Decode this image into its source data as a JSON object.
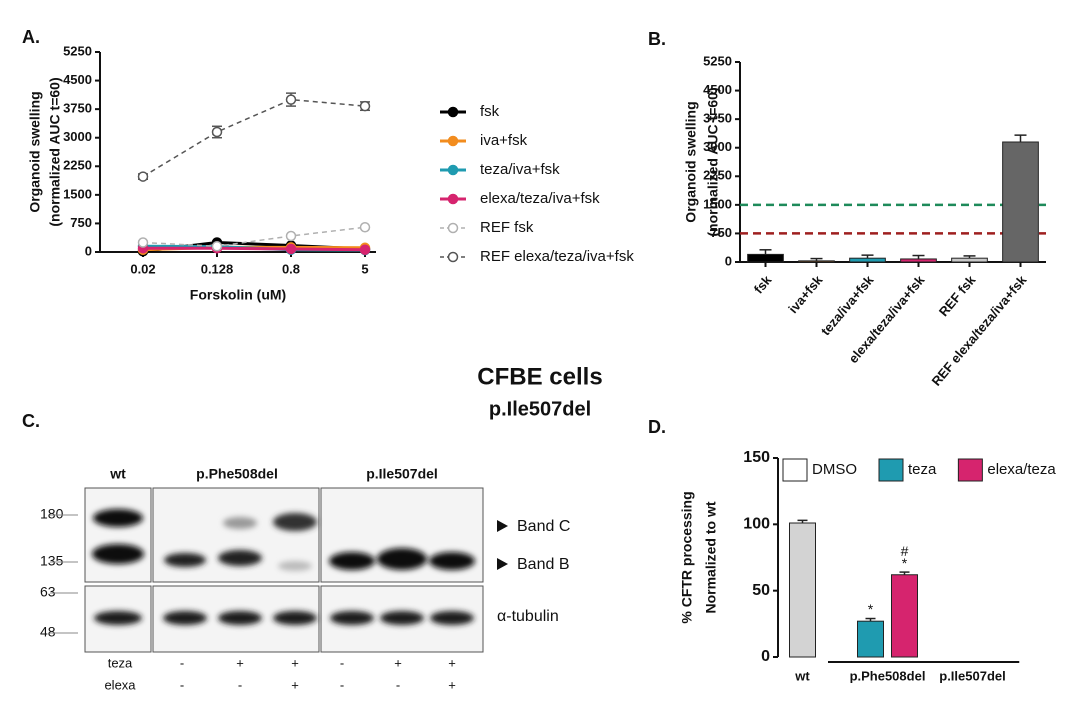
{
  "figure": {
    "title": "CFBE cells",
    "subtitle": "p.Ile507del"
  },
  "blot": {
    "panel": "C.",
    "headers": [
      "wt",
      "p.Phe508del",
      "p.Ile507del"
    ],
    "markers": [
      180,
      135,
      63,
      48
    ],
    "bands": [
      "Band C",
      "Band B",
      "α-tubulin"
    ],
    "treatments": [
      {
        "name": "teza",
        "signs": [
          "-",
          "+",
          "+",
          "-",
          "+",
          "+"
        ]
      },
      {
        "name": "elexa",
        "signs": [
          "-",
          "-",
          "+",
          "-",
          "-",
          "+"
        ]
      }
    ]
  },
  "chart_data": [
    {
      "type": "line",
      "panel": "A.",
      "ylabel": [
        "Organoid swelling",
        "(normalized AUC t=60)"
      ],
      "xlabel": "Forskolin (uM)",
      "categories": [
        "0.02",
        "0.128",
        "0.8",
        "5"
      ],
      "ylim": [
        0,
        5250
      ],
      "yticks": [
        0,
        750,
        1500,
        2250,
        3000,
        3750,
        4500,
        5250
      ],
      "series": [
        {
          "name": "fsk",
          "color": "#000000",
          "values": [
            20,
            250,
            170,
            80
          ]
        },
        {
          "name": "iva+fsk",
          "color": "#f28c1e",
          "values": [
            60,
            120,
            120,
            110
          ]
        },
        {
          "name": "teza/iva+fsk",
          "color": "#1f9bb0",
          "values": [
            150,
            140,
            60,
            50
          ]
        },
        {
          "name": "elexa/teza/iva+fsk",
          "color": "#d6246e",
          "values": [
            100,
            100,
            80,
            60
          ]
        },
        {
          "name": "REF fsk",
          "color": "#b0b0b0",
          "dashed": true,
          "values": [
            250,
            150,
            420,
            650
          ]
        },
        {
          "name": "REF elexa/teza/iva+fsk",
          "color": "#555555",
          "dashed": true,
          "values": [
            1980,
            3150,
            4000,
            3830
          ],
          "errors": [
            70,
            150,
            170,
            110
          ]
        }
      ]
    },
    {
      "type": "bar",
      "panel": "B.",
      "ylabel": [
        "Organoid swelling",
        "(normalized AUC t=60)"
      ],
      "categories": [
        "fsk",
        "iva+fsk",
        "teza/iva+fsk",
        "elexa/teza/iva+fsk",
        "REF fsk",
        "REF elexa/teza/iva+fsk"
      ],
      "values": [
        200,
        30,
        100,
        80,
        100,
        3150
      ],
      "errors": [
        120,
        60,
        80,
        90,
        60,
        180
      ],
      "colors": [
        "#000000",
        "#f28c1e",
        "#1f9bb0",
        "#d6246e",
        "#c8c8c8",
        "#666666"
      ],
      "ylim": [
        0,
        5250
      ],
      "yticks": [
        0,
        750,
        1500,
        2250,
        3000,
        3750,
        4500,
        5250
      ],
      "reference_lines": [
        {
          "value": 1500,
          "color": "#1e8a5a"
        },
        {
          "value": 750,
          "color": "#9e1f1f"
        }
      ]
    },
    {
      "type": "bar",
      "panel": "D.",
      "ylabel": [
        "% CFTR processing",
        "Normalized to wt"
      ],
      "categories": [
        "wt",
        "p.Phe508del",
        "p.Ile507del"
      ],
      "ylim": [
        0,
        150
      ],
      "yticks": [
        0,
        50,
        100,
        150
      ],
      "series": [
        {
          "name": "DMSO",
          "color": "#ffffff",
          "bar_color": "#d3d3d3",
          "values": [
            101,
            null,
            null
          ],
          "errors": [
            2,
            null,
            null
          ]
        },
        {
          "name": "teza",
          "color": "#1f9bb0",
          "values": [
            null,
            27,
            null
          ],
          "errors": [
            null,
            2,
            null
          ],
          "marks": [
            null,
            [
              "*"
            ],
            null
          ]
        },
        {
          "name": "elexa/teza",
          "color": "#d6246e",
          "values": [
            null,
            62,
            null
          ],
          "errors": [
            null,
            2,
            null
          ],
          "marks": [
            null,
            [
              "#",
              "*"
            ],
            null
          ]
        }
      ]
    }
  ]
}
